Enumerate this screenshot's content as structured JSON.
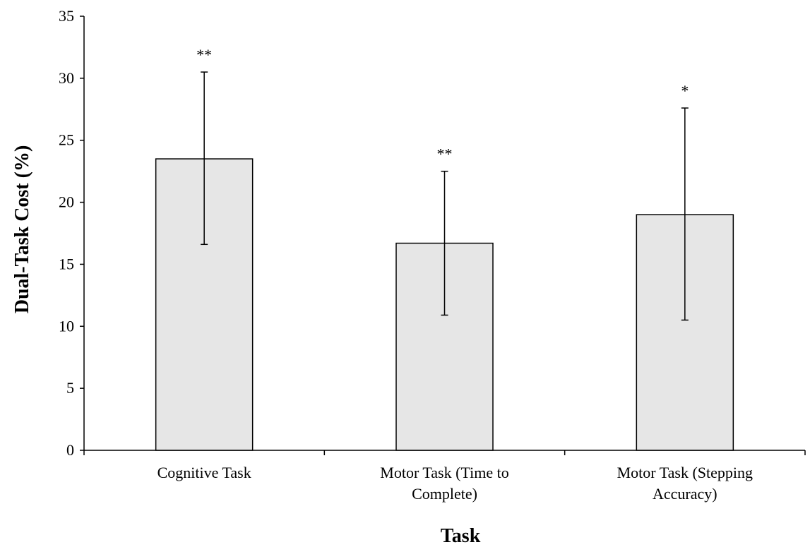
{
  "chart_data": {
    "type": "bar",
    "title": "",
    "xlabel": "Task",
    "ylabel": "Dual-Task Cost (%)",
    "ylim": [
      0,
      35
    ],
    "yticks": [
      "0",
      "5",
      "10",
      "15",
      "20",
      "25",
      "30",
      "35"
    ],
    "grid": false,
    "legend": "none",
    "categories": [
      [
        "Cognitive Task"
      ],
      [
        "Motor Task (Time to",
        "Complete)"
      ],
      [
        "Motor Task (Stepping",
        "Accuracy)"
      ]
    ],
    "values": [
      23.5,
      16.7,
      19.0
    ],
    "error_low": [
      16.6,
      10.9,
      10.5
    ],
    "error_high": [
      30.5,
      22.5,
      27.6
    ],
    "significance": [
      "**",
      "**",
      "*"
    ],
    "colors": {
      "bar_fill": "#e6e6e6",
      "bar_stroke": "#000000",
      "axis": "#000000"
    }
  }
}
